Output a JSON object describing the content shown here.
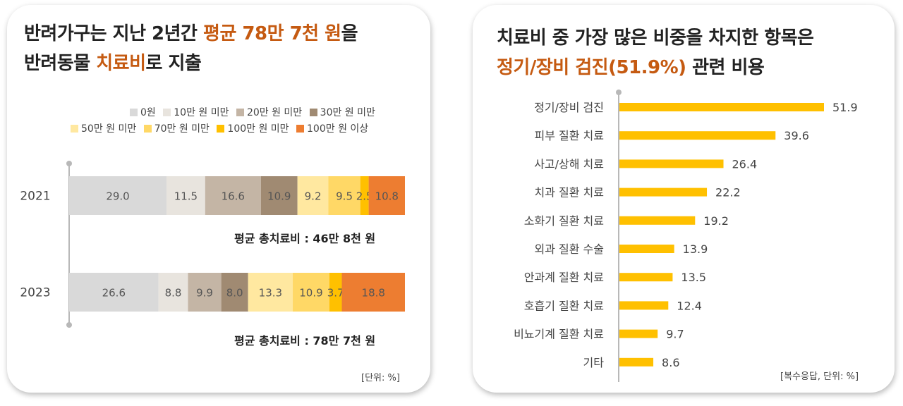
{
  "left": {
    "title_line1": "반려가구는 지난 2년간 ",
    "title_line1_highlight": "평균 78만 7천 원",
    "title_line1_end": "을",
    "title_line2_start": "반려동물 ",
    "title_line2_highlight": "치료비",
    "title_line2_end": "로 지출",
    "legend": [
      {
        "label": "0원",
        "color": "#d9d9d9"
      },
      {
        "label": "10만 원 미만",
        "color": "#e8e4de"
      },
      {
        "label": "20만 원 미만",
        "color": "#c4b5a5"
      },
      {
        "label": "30만 원 미만",
        "color": "#a08a72"
      },
      {
        "label": "50만 원 미만",
        "color": "#ffe8a0"
      },
      {
        "label": "70만 원 미만",
        "color": "#ffd866"
      },
      {
        "label": "100만 원 미만",
        "color": "#ffc000"
      },
      {
        "label": "100만 원 이상",
        "color": "#ed7d31"
      }
    ],
    "notes": [
      "평균 총치료비 : 46만 8천 원",
      "평균 총치료비 : 78만 7천 원"
    ],
    "unit_note": "[단위: %]"
  },
  "right": {
    "title_line1": "치료비 중 가장 많은 비중을 차지한 항목은",
    "title_line2_highlight": "정기/장비 검진(51.9%)",
    "title_line2_end": " 관련 비용",
    "unit_note": "[복수응답, 단위: %]"
  },
  "chart_data": [
    {
      "type": "bar",
      "orientation": "horizontal",
      "stacked": true,
      "categories": [
        "2021",
        "2023"
      ],
      "series": [
        {
          "name": "0원",
          "values": [
            29.0,
            26.6
          ],
          "color": "#d9d9d9"
        },
        {
          "name": "10만 원 미만",
          "values": [
            11.5,
            8.8
          ],
          "color": "#e8e4de"
        },
        {
          "name": "20만 원 미만",
          "values": [
            16.6,
            9.9
          ],
          "color": "#c4b5a5"
        },
        {
          "name": "30만 원 미만",
          "values": [
            10.9,
            8.0
          ],
          "color": "#a08a72"
        },
        {
          "name": "50만 원 미만",
          "values": [
            9.2,
            13.3
          ],
          "color": "#ffe8a0"
        },
        {
          "name": "70만 원 미만",
          "values": [
            9.5,
            10.9
          ],
          "color": "#ffd866"
        },
        {
          "name": "100만 원 미만",
          "values": [
            2.5,
            3.7
          ],
          "color": "#ffc000"
        },
        {
          "name": "100만 원 이상",
          "values": [
            10.8,
            18.8
          ],
          "color": "#ed7d31"
        }
      ],
      "labels": [
        [
          "29.0",
          "11.5",
          "16.6",
          "10.9",
          "9.2",
          "9.5",
          "2.5",
          "10.8"
        ],
        [
          "26.6",
          "8.8",
          "9.9",
          "8.0",
          "13.3",
          "10.9",
          "3.7",
          "18.8"
        ]
      ]
    },
    {
      "type": "bar",
      "orientation": "horizontal",
      "categories": [
        "정기/장비 검진",
        "피부 질환 치료",
        "사고/상해 치료",
        "치과 질환 치료",
        "소화기 질환 치료",
        "외과 질환 수술",
        "안과계 질환 치료",
        "호흡기 질환 치료",
        "비뇨기계 질환 치료",
        "기타"
      ],
      "values": [
        51.9,
        39.6,
        26.4,
        22.2,
        19.2,
        13.9,
        13.5,
        12.4,
        9.7,
        8.6
      ],
      "labels": [
        "51.9",
        "39.6",
        "26.4",
        "22.2",
        "19.2",
        "13.9",
        "13.5",
        "12.4",
        "9.7",
        "8.6"
      ],
      "color": "#ffc000"
    }
  ]
}
